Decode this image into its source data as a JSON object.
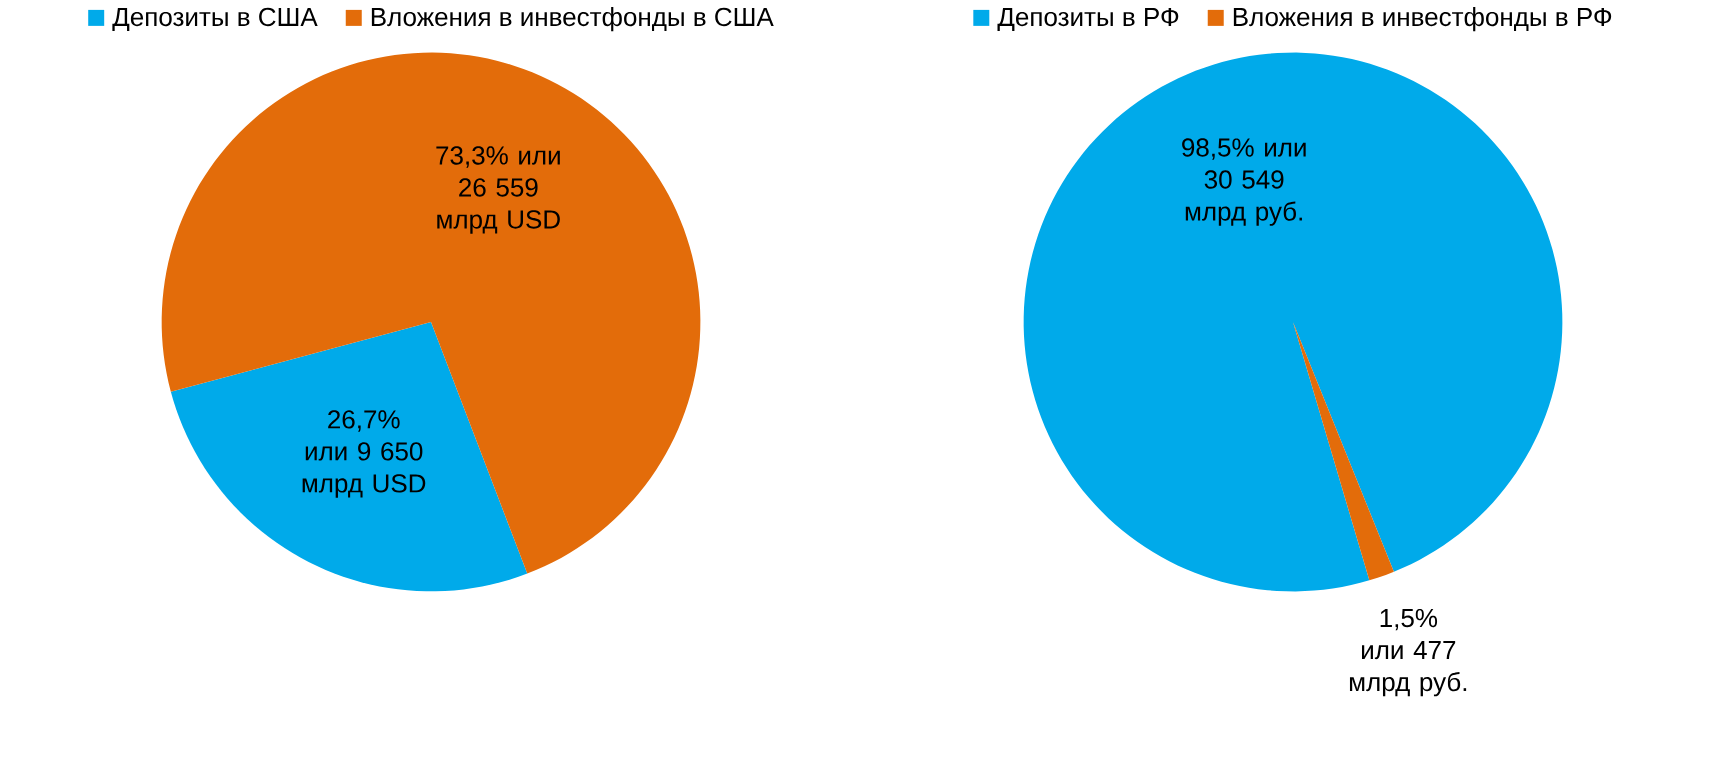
{
  "chart_data": [
    {
      "type": "pie",
      "categories": [
        "Депозиты в США",
        "Вложения в инвестфонды в США"
      ],
      "values": [
        9650,
        26559
      ],
      "value_labels": [
        "26,7% или 9 650 млрд USD",
        "73,3% или 26 559 млрд USD"
      ],
      "colors": [
        "#00aaea",
        "#e36c0a"
      ],
      "legend": "top"
    },
    {
      "type": "pie",
      "categories": [
        "Депозиты в РФ",
        "Вложения в инвестфонды в РФ"
      ],
      "values": [
        30549,
        477
      ],
      "value_labels": [
        "98,5% или 30 549 млрд руб.",
        "1,5% или 477 млрд руб."
      ],
      "colors": [
        "#00aaea",
        "#e36c0a"
      ],
      "legend": "top"
    }
  ]
}
